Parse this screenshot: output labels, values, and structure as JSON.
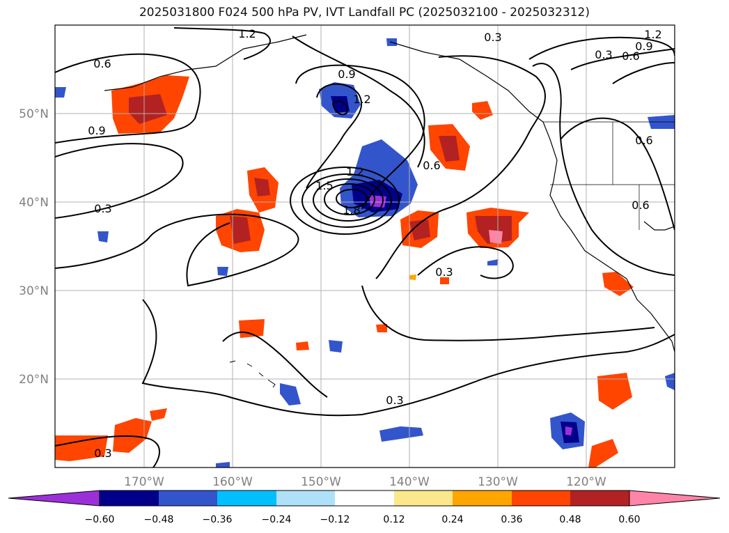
{
  "title": "2025031800 F024 500 hPa PV, IVT Landfall PC (2025032100 - 2025032312)",
  "lon_labels": [
    "170°W",
    "160°W",
    "150°W",
    "140°W",
    "130°W",
    "120°W"
  ],
  "lat_labels": [
    "50°N",
    "40°N",
    "30°N",
    "20°N"
  ],
  "contour_labels": [
    "0.3",
    "0.6",
    "0.9",
    "1.2",
    "1.5",
    "1.8"
  ],
  "colorbar": {
    "ticks": [
      "−0.60",
      "−0.48",
      "−0.36",
      "−0.24",
      "−0.12",
      "0.12",
      "0.24",
      "0.36",
      "0.48",
      "0.60"
    ],
    "colors": [
      "#9b30d9",
      "#00008b",
      "#3355cc",
      "#00bfff",
      "#aee0fa",
      "#ffffff",
      "#fbe88c",
      "#ffa500",
      "#ff4500",
      "#b22222",
      "#ff85a8"
    ]
  },
  "colors": {
    "axis_label": "#808080",
    "grid": "#b0b0b0"
  }
}
